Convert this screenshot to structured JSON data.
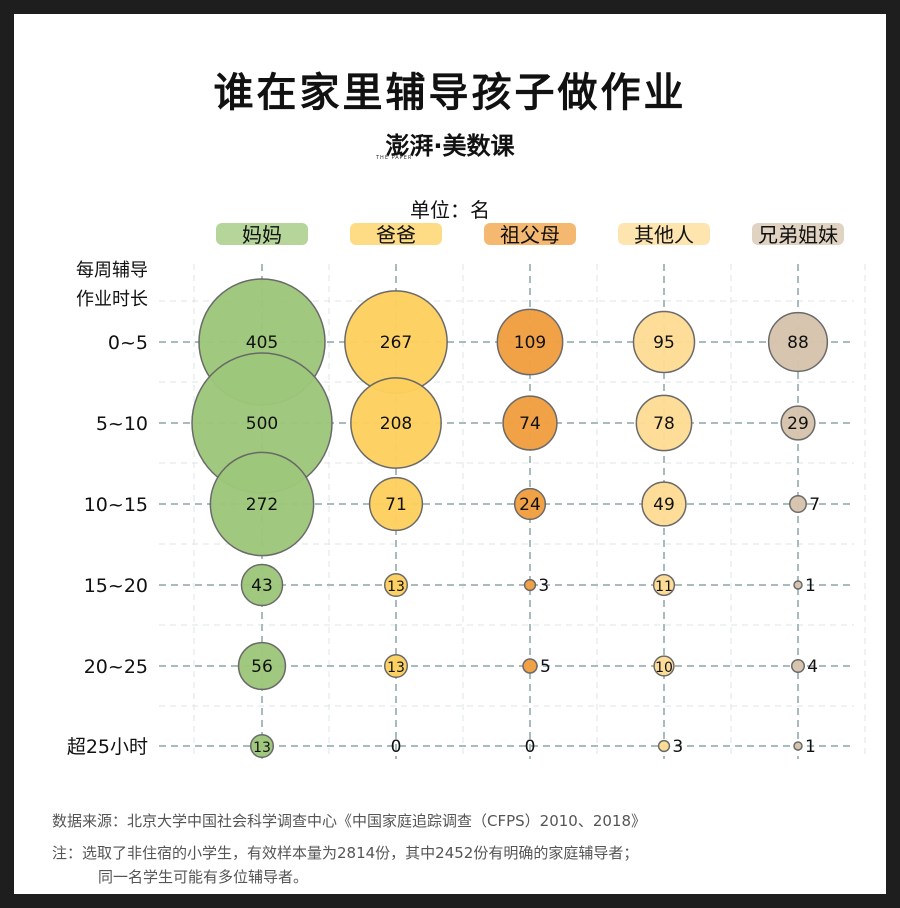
{
  "title": "谁在家里辅导孩子做作业",
  "brand": "澎湃·美数课",
  "brand_sub": "THE PAPER",
  "unit": "单位：名",
  "source": "数据来源：北京大学中国社会科学调查中心《中国家庭追踪调查（CFPS）2010、2018》",
  "note_line1": "注：选取了非住宿的小学生，有效样本量为2814份，其中2452份有明确的家庭辅导者；",
  "note_line2": "同一名学生可能有多位辅导者。",
  "colors": {
    "mother": "#9dc77a",
    "father": "#fdd05e",
    "grandparents": "#f1a042",
    "others": "#fddc95",
    "siblings": "#d7c4ae",
    "grid": "#a9bcbd",
    "bubble_stroke": "#666666"
  },
  "chart_data": {
    "type": "bubble",
    "y_title_line1": "每周辅导",
    "y_title_line2": "作业时长",
    "categories_x": [
      "妈妈",
      "爸爸",
      "祖父母",
      "其他人",
      "兄弟姐妹"
    ],
    "categories_y": [
      "0~5",
      "5~10",
      "10~15",
      "15~20",
      "20~25",
      "超25小时"
    ],
    "series": [
      {
        "name": "妈妈",
        "values": [
          405,
          500,
          272,
          43,
          56,
          13
        ]
      },
      {
        "name": "爸爸",
        "values": [
          267,
          208,
          71,
          13,
          13,
          0
        ]
      },
      {
        "name": "祖父母",
        "values": [
          109,
          74,
          24,
          3,
          5,
          0
        ]
      },
      {
        "name": "其他人",
        "values": [
          95,
          78,
          49,
          11,
          10,
          3
        ]
      },
      {
        "name": "兄弟姐妹",
        "values": [
          88,
          29,
          7,
          1,
          4,
          1
        ]
      }
    ]
  }
}
